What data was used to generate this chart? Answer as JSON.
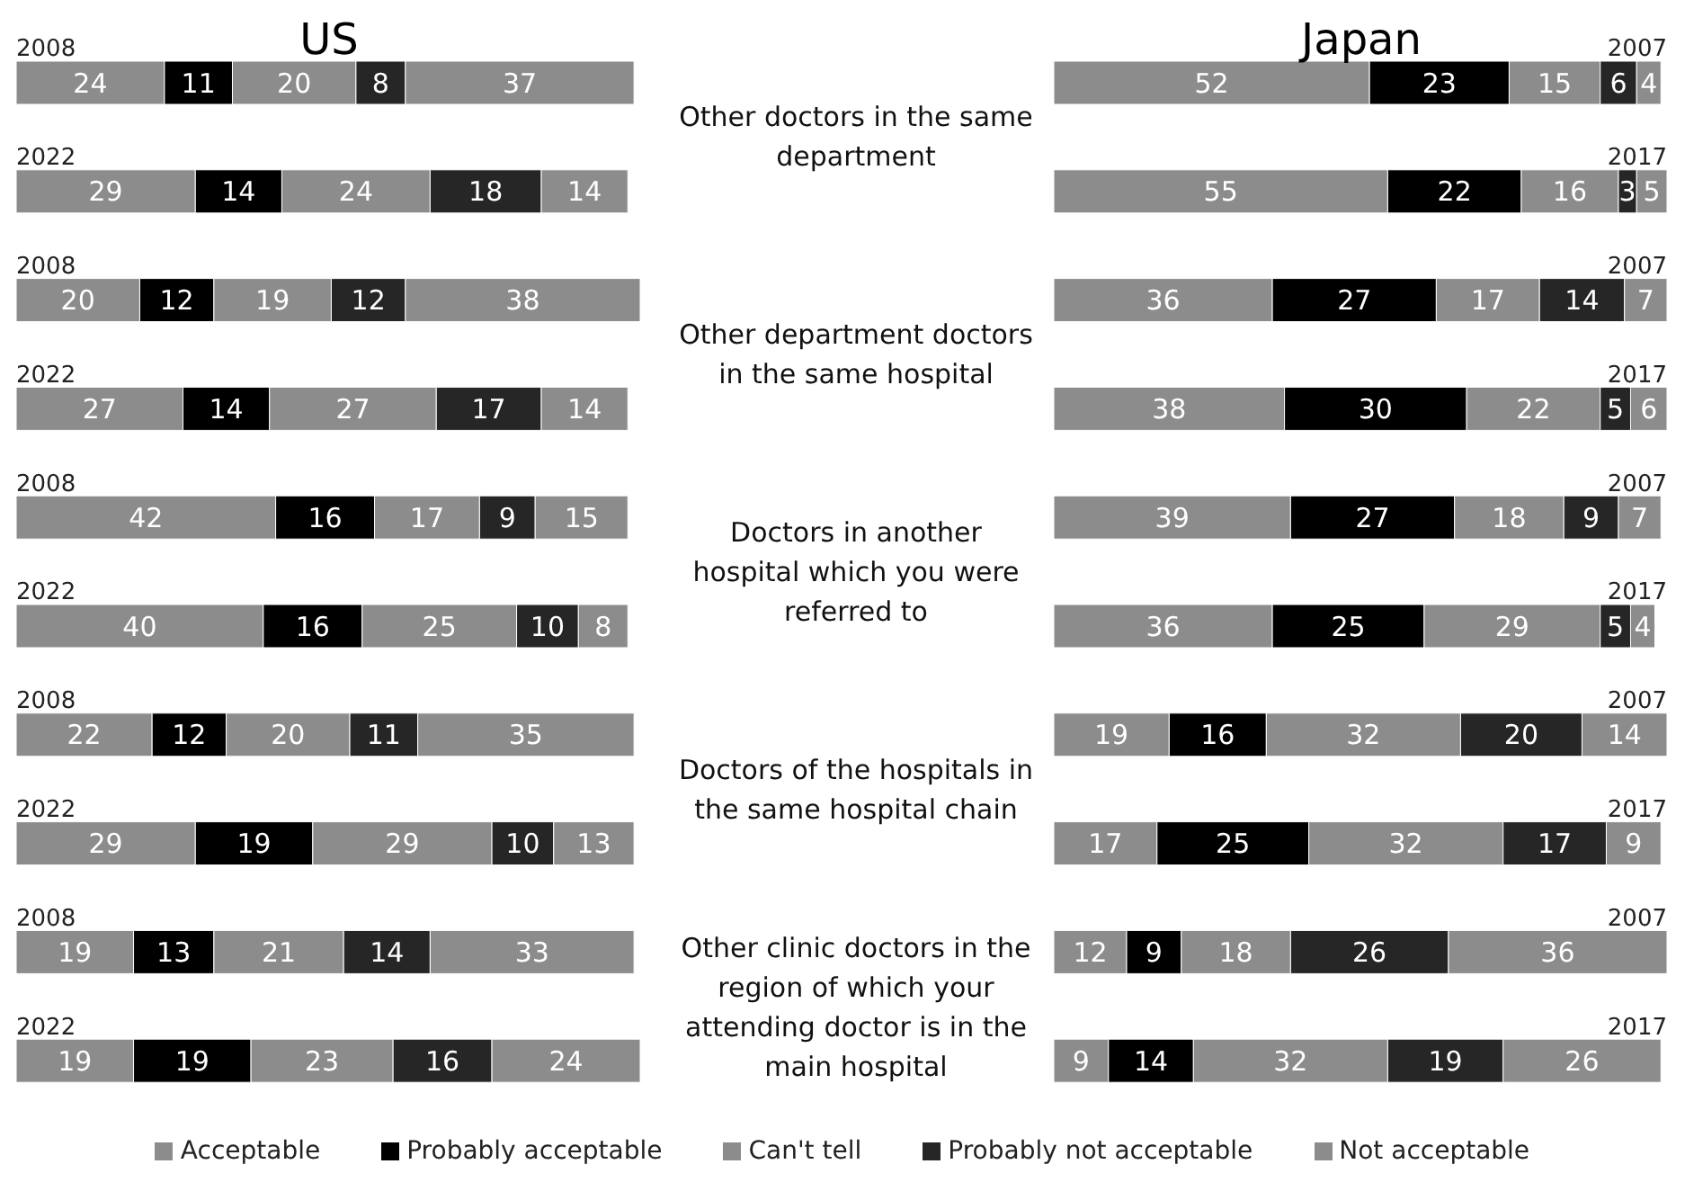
{
  "chart_data": [
    {
      "type": "bar",
      "title": "US",
      "orientation": "horizontal",
      "stacked": true,
      "data_labels": true,
      "tick_labels": "y",
      "legend": "bottom",
      "categories": [
        "2008",
        "2022",
        "2008",
        "2022",
        "2008",
        "2022",
        "2008",
        "2022",
        "2008",
        "2022"
      ],
      "series": [
        {
          "name": "Acceptable",
          "color": "#8c8c8c",
          "values": [
            24,
            29,
            20,
            27,
            42,
            40,
            22,
            29,
            19,
            19
          ]
        },
        {
          "name": "Probably acceptable",
          "color": "#000000",
          "values": [
            11,
            14,
            12,
            14,
            16,
            16,
            12,
            19,
            13,
            19
          ]
        },
        {
          "name": "Can't tell",
          "color": "#8c8c8c",
          "values": [
            20,
            24,
            19,
            27,
            17,
            25,
            20,
            29,
            21,
            23
          ]
        },
        {
          "name": "Probably not acceptable",
          "color": "#262626",
          "values": [
            8,
            18,
            12,
            17,
            9,
            10,
            11,
            10,
            14,
            16
          ]
        },
        {
          "name": "Not acceptable",
          "color": "#8c8c8c",
          "values": [
            37,
            14,
            38,
            14,
            15,
            8,
            35,
            13,
            33,
            24
          ]
        }
      ]
    },
    {
      "type": "bar",
      "title": "Japan",
      "orientation": "horizontal",
      "stacked": true,
      "data_labels": true,
      "tick_labels": "y",
      "categories": [
        "2007",
        "2017",
        "2007",
        "2017",
        "2007",
        "2017",
        "2007",
        "2017",
        "2007",
        "2017"
      ],
      "series": [
        {
          "name": "Acceptable",
          "color": "#8c8c8c",
          "values": [
            52,
            55,
            36,
            38,
            39,
            36,
            19,
            17,
            12,
            9
          ]
        },
        {
          "name": "Probably acceptable",
          "color": "#000000",
          "values": [
            23,
            22,
            27,
            30,
            27,
            25,
            16,
            25,
            9,
            14
          ]
        },
        {
          "name": "Can't tell",
          "color": "#8c8c8c",
          "values": [
            15,
            16,
            17,
            22,
            18,
            29,
            32,
            32,
            18,
            32
          ]
        },
        {
          "name": "Probably not acceptable",
          "color": "#262626",
          "values": [
            6,
            3,
            14,
            5,
            9,
            5,
            20,
            17,
            26,
            19
          ]
        },
        {
          "name": "Not acceptable",
          "color": "#8c8c8c",
          "values": [
            4,
            5,
            7,
            6,
            7,
            4,
            14,
            9,
            36,
            26
          ]
        }
      ],
      "annotations": [
        "Other doctors in the same department",
        "Other department doctors in the same hospital",
        "Doctors in another hospital which you were referred to",
        "Doctors of the hospitals in the same hospital chain",
        "Other clinic doctors in the region of which your attending doctor is in the main hospital"
      ]
    }
  ]
}
